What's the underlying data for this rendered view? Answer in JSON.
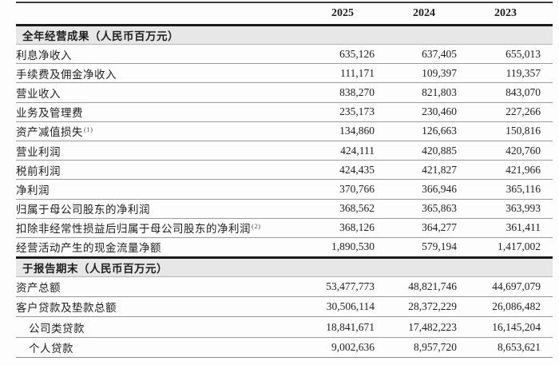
{
  "header": {
    "years": [
      "2025",
      "2024",
      "2023"
    ]
  },
  "sections": [
    {
      "title": "全年经营成果（人民币百万元）",
      "rows": [
        {
          "label": "利息净收入",
          "values": [
            "635,126",
            "637,405",
            "655,013"
          ]
        },
        {
          "label": "手续费及佣金净收入",
          "values": [
            "111,171",
            "109,397",
            "119,357"
          ]
        },
        {
          "label": "营业收入",
          "values": [
            "838,270",
            "821,803",
            "843,070"
          ]
        },
        {
          "label": "业务及管理费",
          "values": [
            "235,173",
            "230,460",
            "227,266"
          ]
        },
        {
          "label": "资产减值损失",
          "sup": "(1)",
          "values": [
            "134,860",
            "126,663",
            "150,816"
          ]
        },
        {
          "label": "营业利润",
          "values": [
            "424,111",
            "420,885",
            "420,760"
          ]
        },
        {
          "label": "税前利润",
          "values": [
            "424,435",
            "421,827",
            "421,966"
          ]
        },
        {
          "label": "净利润",
          "values": [
            "370,766",
            "366,946",
            "365,116"
          ]
        },
        {
          "label": "归属于母公司股东的净利润",
          "values": [
            "368,562",
            "365,863",
            "363,993"
          ]
        },
        {
          "label": "扣除非经常性损益后归属于母公司股东的净利润",
          "sup": "(2)",
          "values": [
            "368,126",
            "364,277",
            "361,411"
          ]
        },
        {
          "label": "经营活动产生的现金流量净额",
          "values": [
            "1,890,530",
            "579,194",
            "1,417,002"
          ]
        }
      ]
    },
    {
      "title": "于报告期末（人民币百万元）",
      "rows": [
        {
          "label": "资产总额",
          "values": [
            "53,477,773",
            "48,821,746",
            "44,697,079"
          ]
        },
        {
          "label": "客户贷款及垫款总额",
          "values": [
            "30,506,114",
            "28,372,229",
            "26,086,482"
          ]
        },
        {
          "label": "公司类贷款",
          "indent": true,
          "values": [
            "18,841,671",
            "17,482,223",
            "16,145,204"
          ]
        },
        {
          "label": "个人贷款",
          "indent": true,
          "values": [
            "9,002,636",
            "8,957,720",
            "8,653,621"
          ]
        }
      ]
    }
  ],
  "colors": {
    "section_band_bg": "#e7e7e7",
    "heavy_rule": "#1a1a1a",
    "row_rule": "#9a9a9a",
    "text": "#1e1e1e"
  }
}
